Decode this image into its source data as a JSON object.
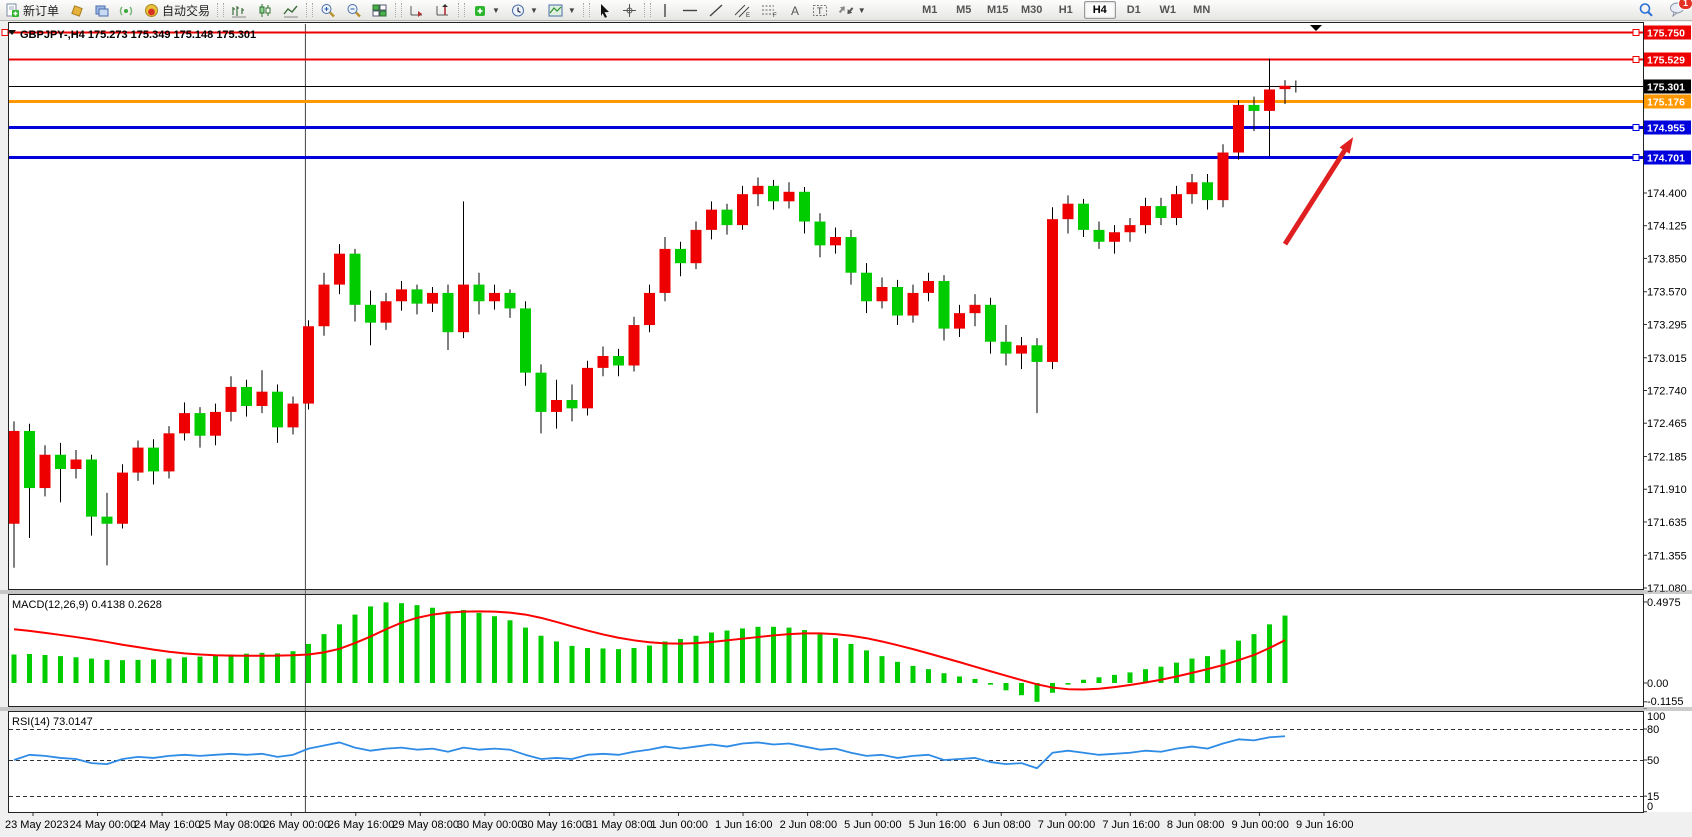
{
  "toolbar": {
    "new_order_label": "新订单",
    "autotrade_label": "自动交易",
    "timeframes": [
      "M1",
      "M5",
      "M15",
      "M30",
      "H1",
      "H4",
      "D1",
      "W1",
      "MN"
    ],
    "active_timeframe": "H4",
    "notification_count": "1"
  },
  "chart": {
    "title_line": "GBPJPY-,H4  175.273 175.349 175.148 175.301",
    "symbol_period": "GBPJPY-,H4",
    "macd_label": "MACD(12,26,9) 0.4138 0.2628",
    "rsi_label": "RSI(14) 73.0147"
  },
  "colors": {
    "up": "#ee0000",
    "down": "#00cc00",
    "wick": "#000000",
    "macd_hist": "#00cc00",
    "macd_signal": "#ff0000",
    "rsi_line": "#2e8be6",
    "level_red": "#ee0000",
    "level_blue": "#0000dd",
    "level_orange": "#ff9800",
    "bid_line": "#000000",
    "arrow": "#e02020",
    "axis_text": "#000000"
  },
  "chart_data": {
    "type": "candlestick",
    "symbol": "GBPJPY-",
    "timeframe": "H4",
    "current_ohlc": {
      "open": "175.273",
      "high": "175.349",
      "low": "175.148",
      "close": "175.301"
    },
    "y_ticks": [
      "174.400",
      "174.125",
      "173.850",
      "173.570",
      "173.295",
      "173.015",
      "172.740",
      "172.465",
      "172.185",
      "171.910",
      "171.635",
      "171.355",
      "171.080"
    ],
    "y_tick_values": [
      174.4,
      174.125,
      173.85,
      173.57,
      173.295,
      173.015,
      172.74,
      172.465,
      172.185,
      171.91,
      171.635,
      171.355,
      171.08
    ],
    "x_labels": [
      "23 May 2023",
      "24 May 00:00",
      "24 May 16:00",
      "25 May 08:00",
      "26 May 00:00",
      "26 May 16:00",
      "29 May 08:00",
      "30 May 00:00",
      "30 May 16:00",
      "31 May 08:00",
      "1 Jun 00:00",
      "1 Jun 16:00",
      "2 Jun 08:00",
      "5 Jun 00:00",
      "5 Jun 16:00",
      "6 Jun 08:00",
      "7 Jun 00:00",
      "7 Jun 16:00",
      "8 Jun 08:00",
      "9 Jun 00:00",
      "9 Jun 16:00"
    ],
    "levels": [
      {
        "label": "175.750",
        "value": 175.75,
        "color": "#ee0000",
        "width": 2,
        "handles": "both"
      },
      {
        "label": "175.529",
        "value": 175.529,
        "color": "#ee0000",
        "width": 2,
        "handles": "right"
      },
      {
        "label": "175.301",
        "value": 175.301,
        "color": "#000000",
        "width": 1,
        "handles": "none"
      },
      {
        "label": "175.176",
        "value": 175.176,
        "color": "#ff9800",
        "width": 3,
        "handles": "none"
      },
      {
        "label": "174.955",
        "value": 174.955,
        "color": "#0000dd",
        "width": 3,
        "handles": "right"
      },
      {
        "label": "174.701",
        "value": 174.701,
        "color": "#0000dd",
        "width": 3,
        "handles": "right"
      }
    ],
    "candles": [
      [
        171.62,
        172.48,
        171.25,
        172.4
      ],
      [
        172.4,
        172.46,
        171.5,
        171.92
      ],
      [
        171.92,
        172.28,
        171.85,
        172.2
      ],
      [
        172.2,
        172.3,
        171.8,
        172.08
      ],
      [
        172.08,
        172.24,
        172.0,
        172.16
      ],
      [
        172.16,
        172.2,
        171.52,
        171.68
      ],
      [
        171.68,
        171.88,
        171.27,
        171.62
      ],
      [
        171.62,
        172.12,
        171.58,
        172.05
      ],
      [
        172.05,
        172.32,
        171.98,
        172.26
      ],
      [
        172.26,
        172.33,
        171.95,
        172.06
      ],
      [
        172.06,
        172.44,
        172.0,
        172.38
      ],
      [
        172.38,
        172.64,
        172.32,
        172.55
      ],
      [
        172.55,
        172.6,
        172.26,
        172.36
      ],
      [
        172.36,
        172.63,
        172.28,
        172.56
      ],
      [
        172.56,
        172.86,
        172.48,
        172.77
      ],
      [
        172.77,
        172.83,
        172.52,
        172.61
      ],
      [
        172.61,
        172.91,
        172.55,
        172.73
      ],
      [
        172.73,
        172.79,
        172.3,
        172.43
      ],
      [
        172.43,
        172.69,
        172.37,
        172.63
      ],
      [
        172.63,
        173.33,
        172.58,
        173.28
      ],
      [
        173.28,
        173.73,
        173.2,
        173.63
      ],
      [
        173.63,
        173.97,
        173.55,
        173.89
      ],
      [
        173.89,
        173.93,
        173.32,
        173.46
      ],
      [
        173.46,
        173.58,
        173.12,
        173.31
      ],
      [
        173.31,
        173.56,
        173.25,
        173.49
      ],
      [
        173.49,
        173.66,
        173.41,
        173.59
      ],
      [
        173.59,
        173.63,
        173.38,
        173.47
      ],
      [
        173.47,
        173.61,
        173.4,
        173.56
      ],
      [
        173.56,
        173.63,
        173.08,
        173.23
      ],
      [
        173.23,
        174.33,
        173.18,
        173.63
      ],
      [
        173.63,
        173.73,
        173.38,
        173.49
      ],
      [
        173.49,
        173.63,
        173.42,
        173.56
      ],
      [
        173.56,
        173.59,
        173.35,
        173.43
      ],
      [
        173.43,
        173.49,
        172.78,
        172.89
      ],
      [
        172.89,
        172.96,
        172.38,
        172.56
      ],
      [
        172.56,
        172.83,
        172.42,
        172.66
      ],
      [
        172.66,
        172.79,
        172.48,
        172.59
      ],
      [
        172.59,
        172.99,
        172.53,
        172.93
      ],
      [
        172.93,
        173.11,
        172.86,
        173.03
      ],
      [
        173.03,
        173.09,
        172.86,
        172.95
      ],
      [
        172.95,
        173.36,
        172.9,
        173.29
      ],
      [
        173.29,
        173.63,
        173.23,
        173.56
      ],
      [
        173.56,
        174.03,
        173.49,
        173.93
      ],
      [
        173.93,
        173.99,
        173.7,
        173.81
      ],
      [
        173.81,
        174.16,
        173.76,
        174.09
      ],
      [
        174.09,
        174.33,
        174.01,
        174.26
      ],
      [
        174.26,
        174.31,
        174.05,
        174.13
      ],
      [
        174.13,
        174.46,
        174.09,
        174.39
      ],
      [
        174.39,
        174.53,
        174.29,
        174.46
      ],
      [
        174.46,
        174.51,
        174.26,
        174.33
      ],
      [
        174.33,
        174.49,
        174.27,
        174.41
      ],
      [
        174.41,
        174.45,
        174.06,
        174.16
      ],
      [
        174.16,
        174.23,
        173.86,
        173.96
      ],
      [
        173.96,
        174.11,
        173.89,
        174.03
      ],
      [
        174.03,
        174.09,
        173.63,
        173.73
      ],
      [
        173.73,
        173.81,
        173.39,
        173.49
      ],
      [
        173.49,
        173.69,
        173.43,
        173.61
      ],
      [
        173.61,
        173.67,
        173.29,
        173.37
      ],
      [
        173.37,
        173.63,
        173.31,
        173.56
      ],
      [
        173.56,
        173.73,
        173.49,
        173.66
      ],
      [
        173.66,
        173.71,
        173.16,
        173.26
      ],
      [
        173.26,
        173.46,
        173.19,
        173.39
      ],
      [
        173.39,
        173.55,
        173.28,
        173.46
      ],
      [
        173.46,
        173.52,
        173.05,
        173.15
      ],
      [
        173.15,
        173.29,
        172.95,
        173.05
      ],
      [
        173.05,
        173.19,
        172.92,
        173.12
      ],
      [
        173.12,
        173.18,
        172.55,
        172.98
      ],
      [
        172.98,
        174.28,
        172.92,
        174.18
      ],
      [
        174.18,
        174.38,
        174.06,
        174.31
      ],
      [
        174.31,
        174.35,
        174.03,
        174.09
      ],
      [
        174.09,
        174.16,
        173.93,
        173.99
      ],
      [
        173.99,
        174.13,
        173.89,
        174.07
      ],
      [
        174.07,
        174.19,
        173.99,
        174.13
      ],
      [
        174.13,
        174.36,
        174.06,
        174.29
      ],
      [
        174.29,
        174.36,
        174.13,
        174.19
      ],
      [
        174.19,
        174.46,
        174.13,
        174.39
      ],
      [
        174.39,
        174.56,
        174.31,
        174.49
      ],
      [
        174.49,
        174.56,
        174.26,
        174.34
      ],
      [
        174.34,
        174.81,
        174.28,
        174.74
      ],
      [
        174.74,
        175.18,
        174.68,
        175.14
      ],
      [
        175.14,
        175.21,
        174.92,
        175.09
      ],
      [
        175.09,
        175.53,
        174.71,
        175.27
      ],
      [
        175.273,
        175.349,
        175.148,
        175.301
      ]
    ],
    "macd": {
      "params": "12,26,9",
      "value": 0.4138,
      "signal_value": 0.2628,
      "y_ticks": [
        "0.4975",
        "0.00",
        "-0.1155"
      ],
      "y_tick_values": [
        0.4975,
        0.0,
        -0.1155
      ],
      "histogram": [
        0.175,
        0.178,
        0.172,
        0.165,
        0.158,
        0.15,
        0.142,
        0.14,
        0.142,
        0.145,
        0.15,
        0.158,
        0.162,
        0.168,
        0.175,
        0.18,
        0.185,
        0.182,
        0.195,
        0.24,
        0.3,
        0.36,
        0.42,
        0.47,
        0.495,
        0.49,
        0.478,
        0.462,
        0.44,
        0.448,
        0.43,
        0.41,
        0.385,
        0.34,
        0.29,
        0.255,
        0.228,
        0.215,
        0.212,
        0.208,
        0.215,
        0.23,
        0.255,
        0.27,
        0.29,
        0.31,
        0.322,
        0.335,
        0.345,
        0.345,
        0.34,
        0.325,
        0.3,
        0.275,
        0.24,
        0.2,
        0.165,
        0.13,
        0.105,
        0.085,
        0.06,
        0.04,
        0.025,
        -0.01,
        -0.045,
        -0.075,
        -0.1155,
        -0.06,
        -0.01,
        0.02,
        0.035,
        0.05,
        0.065,
        0.085,
        0.1,
        0.125,
        0.15,
        0.165,
        0.205,
        0.26,
        0.3,
        0.36,
        0.4138
      ],
      "signal": [
        0.33,
        0.32,
        0.308,
        0.295,
        0.282,
        0.268,
        0.252,
        0.235,
        0.22,
        0.205,
        0.192,
        0.182,
        0.175,
        0.17,
        0.168,
        0.167,
        0.167,
        0.168,
        0.17,
        0.175,
        0.188,
        0.21,
        0.245,
        0.285,
        0.33,
        0.37,
        0.4,
        0.42,
        0.432,
        0.438,
        0.44,
        0.438,
        0.432,
        0.42,
        0.4,
        0.375,
        0.348,
        0.322,
        0.298,
        0.278,
        0.262,
        0.25,
        0.243,
        0.242,
        0.245,
        0.252,
        0.262,
        0.272,
        0.282,
        0.292,
        0.3,
        0.305,
        0.305,
        0.3,
        0.29,
        0.275,
        0.255,
        0.232,
        0.208,
        0.182,
        0.155,
        0.128,
        0.1,
        0.072,
        0.045,
        0.018,
        -0.008,
        -0.028,
        -0.038,
        -0.04,
        -0.035,
        -0.025,
        -0.012,
        0.003,
        0.02,
        0.04,
        0.062,
        0.085,
        0.11,
        0.14,
        0.172,
        0.215,
        0.2628
      ]
    },
    "rsi": {
      "period": 14,
      "value": 73.0147,
      "levels": [
        80,
        50,
        15
      ],
      "y_ticks": [
        "100",
        "80",
        "50",
        "15",
        "0"
      ],
      "y_tick_values": [
        100,
        80,
        50,
        15,
        0
      ],
      "values": [
        50,
        55,
        54,
        52,
        51,
        47,
        46,
        51,
        53,
        52,
        54,
        55,
        54,
        55,
        56,
        55,
        56,
        53,
        55,
        61,
        64,
        67,
        62,
        59,
        61,
        62,
        60,
        61,
        58,
        62,
        60,
        61,
        60,
        55,
        51,
        52,
        51,
        55,
        56,
        55,
        58,
        60,
        63,
        61,
        63,
        65,
        63,
        66,
        67,
        65,
        66,
        63,
        60,
        61,
        57,
        54,
        55,
        52,
        54,
        55,
        50,
        51,
        52,
        48,
        46,
        47,
        42,
        57,
        59,
        57,
        55,
        56,
        57,
        59,
        58,
        61,
        63,
        61,
        66,
        70,
        69,
        72,
        73
      ]
    },
    "annotations": {
      "trend_arrow": {
        "bar1": 82.0,
        "price1": 173.97,
        "bar2": 86.4,
        "price2": 174.87,
        "color": "#e02020"
      },
      "vertical_line_bar": 18.8,
      "cursor_cross": {
        "bar": 82.7,
        "price": 175.295
      },
      "shift_marker_bar": 84
    }
  }
}
